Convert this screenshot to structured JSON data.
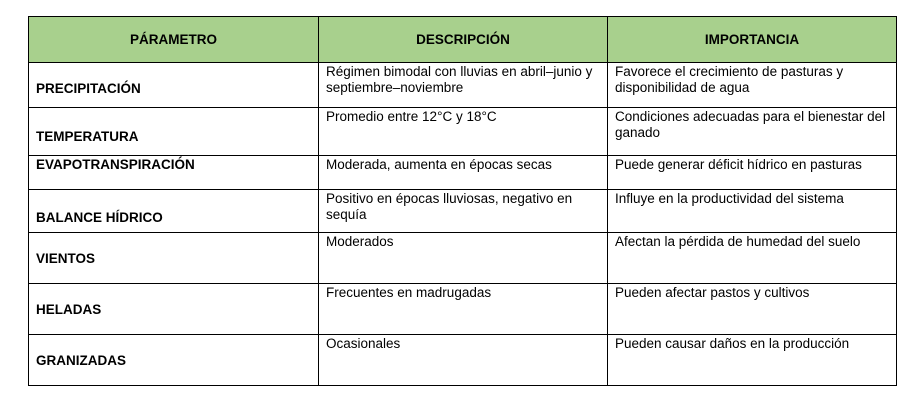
{
  "colors": {
    "header_bg": "#a8d08d",
    "border": "#000000"
  },
  "headers": [
    "PÁRAMETRO",
    "DESCRIPCIÓN",
    "IMPORTANCIA"
  ],
  "rows": [
    {
      "param": "PRECIPITACIÓN",
      "desc": "Régimen bimodal con lluvias en abril–junio y septiembre–noviembre",
      "imp": "Favorece el crecimiento de pasturas y disponibilidad de agua"
    },
    {
      "param": "TEMPERATURA",
      "desc": "Promedio entre 12°C y 18°C",
      "imp": "Condiciones adecuadas para el bienestar del ganado"
    },
    {
      "param": "EVAPOTRANSPIRACIÓN",
      "desc": "Moderada, aumenta en épocas secas",
      "imp": "Puede generar déficit hídrico en pasturas"
    },
    {
      "param": "BALANCE HÍDRICO",
      "desc": "Positivo en épocas lluviosas, negativo en sequía",
      "imp": "Influye en la productividad del sistema"
    },
    {
      "param": "VIENTOS",
      "desc": "Moderados",
      "imp": "Afectan la pérdida de humedad del suelo"
    },
    {
      "param": "HELADAS",
      "desc": "Frecuentes en madrugadas",
      "imp": "Pueden afectar pastos y cultivos"
    },
    {
      "param": "GRANIZADAS",
      "desc": "Ocasionales",
      "imp": "Pueden causar daños en la producción"
    }
  ]
}
